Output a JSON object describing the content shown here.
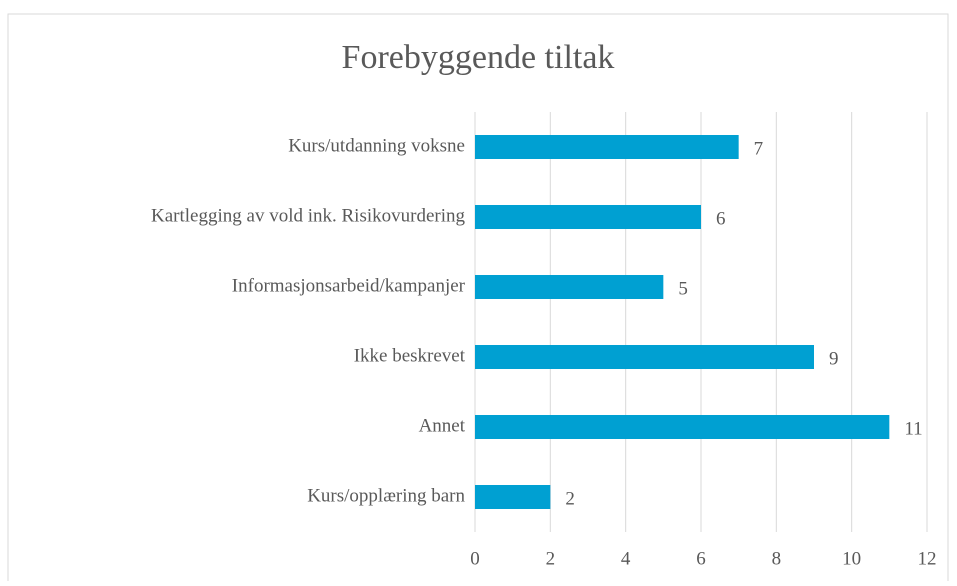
{
  "chart_data": {
    "type": "bar",
    "orientation": "horizontal",
    "title": "Forebyggende tiltak",
    "categories": [
      "Kurs/utdanning voksne",
      "Kartlegging av vold ink. Risikovurdering",
      "Informasjonsarbeid/kampanjer",
      "Ikke beskrevet",
      "Annet",
      "Kurs/opplæring barn"
    ],
    "values": [
      7,
      6,
      5,
      9,
      11,
      2
    ],
    "color": "#00a0d2",
    "xlim": [
      0,
      12
    ],
    "xticks": [
      0,
      2,
      4,
      6,
      8,
      10,
      12
    ],
    "grid": true,
    "data_labels": true
  }
}
